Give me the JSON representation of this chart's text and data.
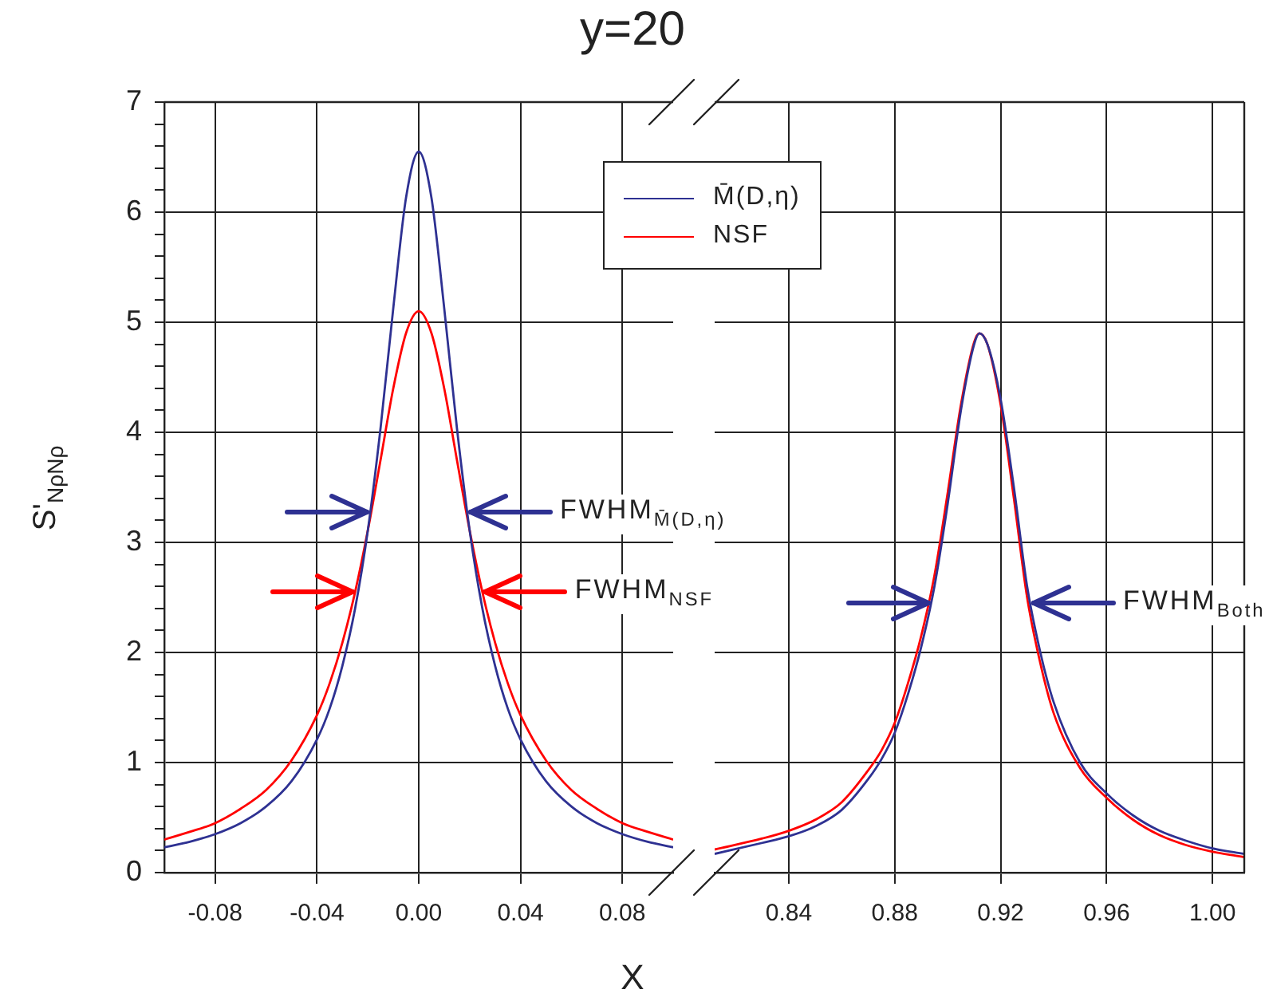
{
  "chart_data": [
    {
      "type": "line",
      "title": "y=20",
      "xlabel": "X",
      "ylabel": "S'$_{NρNρ}$",
      "xlim": [
        -0.1,
        0.1
      ],
      "xticks": [
        -0.08,
        -0.04,
        {
          "value": 0,
          "label": "0.00"
        },
        0.04,
        0.08
      ],
      "ylim": [
        0,
        7
      ],
      "yticks": [
        0,
        {
          "value": 0.2,
          "label": null
        },
        {
          "value": 0.4,
          "label": null
        },
        {
          "value": 0.6,
          "label": null
        },
        {
          "value": 0.8,
          "label": null
        },
        1,
        {
          "value": 1.2,
          "label": null
        },
        {
          "value": 1.4,
          "label": null
        },
        {
          "value": 1.6,
          "label": null
        },
        {
          "value": 1.8,
          "label": null
        },
        2,
        {
          "value": 2.2,
          "label": null
        },
        {
          "value": 2.4,
          "label": null
        },
        {
          "value": 2.6,
          "label": null
        },
        {
          "value": 2.8,
          "label": null
        },
        3,
        {
          "value": 3.2,
          "label": null
        },
        {
          "value": 3.4,
          "label": null
        },
        {
          "value": 3.6,
          "label": null
        },
        {
          "value": 3.8,
          "label": null
        },
        4,
        {
          "value": 4.2,
          "label": null
        },
        {
          "value": 4.4,
          "label": null
        },
        {
          "value": 4.6,
          "label": null
        },
        {
          "value": 4.8,
          "label": null
        },
        5,
        {
          "value": 5.2,
          "label": null
        },
        {
          "value": 5.4,
          "label": null
        },
        {
          "value": 5.6,
          "label": null
        },
        {
          "value": 5.8,
          "label": null
        },
        6,
        {
          "value": 6.2,
          "label": null
        },
        {
          "value": 6.4,
          "label": null
        },
        {
          "value": 6.6,
          "label": null
        },
        {
          "value": 6.8,
          "label": null
        },
        7
      ],
      "x": [
        -0.1,
        -0.09,
        -0.08,
        -0.07,
        -0.06,
        -0.05,
        -0.04,
        -0.035,
        -0.03,
        -0.025,
        -0.02,
        -0.015,
        -0.01,
        -0.005,
        0,
        0.005,
        0.01,
        0.015,
        0.02,
        0.025,
        0.03,
        0.035,
        0.04,
        0.05,
        0.06,
        0.07,
        0.08,
        0.09,
        0.1
      ],
      "series": [
        {
          "name": "M̄(D,η)",
          "color": "#2e3192",
          "values": [
            0.23,
            0.28,
            0.35,
            0.45,
            0.6,
            0.83,
            1.21,
            1.49,
            1.88,
            2.4,
            3.11,
            4.04,
            5.13,
            6.13,
            6.55,
            6.13,
            5.13,
            4.04,
            3.11,
            2.4,
            1.88,
            1.49,
            1.21,
            0.83,
            0.6,
            0.45,
            0.35,
            0.28,
            0.23
          ]
        },
        {
          "name": "NSF",
          "color": "#ff0000",
          "values": [
            0.3,
            0.37,
            0.45,
            0.58,
            0.75,
            1.02,
            1.43,
            1.72,
            2.09,
            2.55,
            3.11,
            3.75,
            4.4,
            4.9,
            5.1,
            4.9,
            4.4,
            3.75,
            3.11,
            2.55,
            2.09,
            1.72,
            1.43,
            1.02,
            0.75,
            0.58,
            0.45,
            0.37,
            0.3
          ]
        }
      ],
      "annotations": [
        "FWHM$_{M̄(D,η)}$",
        "FWHM$_{NSF}$"
      ],
      "grid": true,
      "legend": "top right",
      "line_style": "solid"
    },
    {
      "type": "line",
      "tick_labels": "x",
      "xlim": [
        0.812,
        1.012
      ],
      "xticks": [
        0.84,
        0.88,
        0.92,
        0.96,
        {
          "value": 1,
          "label": "1.00"
        }
      ],
      "ylim": [
        0,
        7
      ],
      "yticks": [
        0,
        1,
        2,
        3,
        4,
        5,
        6,
        7
      ],
      "x": [
        0.812,
        0.83,
        0.84,
        0.85,
        0.86,
        0.87,
        0.875,
        0.88,
        0.885,
        0.89,
        0.895,
        0.9,
        0.905,
        0.91,
        0.912,
        0.915,
        0.92,
        0.925,
        0.93,
        0.935,
        0.94,
        0.95,
        0.96,
        0.97,
        0.98,
        0.99,
        1,
        1.012
      ],
      "series": [
        {
          "color": "#2e3192",
          "values": [
            0.17,
            0.27,
            0.33,
            0.42,
            0.57,
            0.85,
            1.03,
            1.27,
            1.62,
            2.05,
            2.6,
            3.35,
            4.2,
            4.8,
            4.9,
            4.8,
            4.3,
            3.5,
            2.6,
            2,
            1.55,
            1,
            0.72,
            0.52,
            0.38,
            0.29,
            0.22,
            0.17
          ]
        },
        {
          "color": "#ff0000",
          "values": [
            0.21,
            0.31,
            0.38,
            0.48,
            0.64,
            0.93,
            1.11,
            1.36,
            1.72,
            2.15,
            2.7,
            3.45,
            4.25,
            4.82,
            4.9,
            4.8,
            4.25,
            3.4,
            2.5,
            1.9,
            1.45,
            0.95,
            0.68,
            0.48,
            0.34,
            0.25,
            0.19,
            0.14
          ]
        }
      ],
      "annotations": [
        "FWHM$_{Both}$"
      ],
      "grid": true,
      "line_style": "solid"
    }
  ]
}
